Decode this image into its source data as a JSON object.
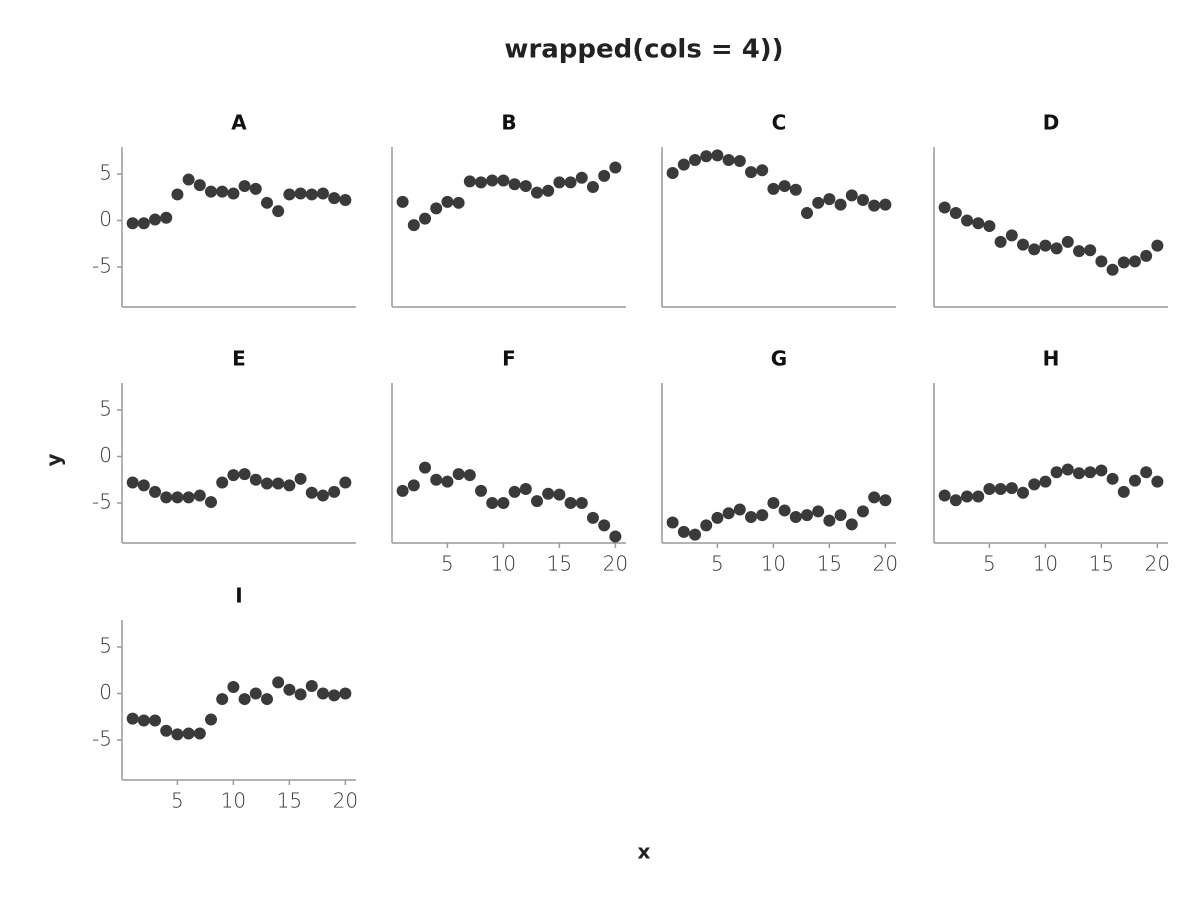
{
  "chart_data": {
    "type": "scatter",
    "title": "wrapped(cols = 4))",
    "x_label": "x",
    "y_label": "y",
    "color": "#3a3a3a",
    "columns": 4,
    "x": [
      1,
      2,
      3,
      4,
      5,
      6,
      7,
      8,
      9,
      10,
      11,
      12,
      13,
      14,
      15,
      16,
      17,
      18,
      19,
      20
    ],
    "xlim": [
      0.05,
      20.95
    ],
    "ylim": [
      -9.3,
      7.9
    ],
    "xticks": [
      5,
      10,
      15,
      20
    ],
    "yticks": [
      -5,
      0,
      5
    ],
    "panels": [
      {
        "title": "A",
        "values": [
          -0.3,
          -0.3,
          0.1,
          0.3,
          2.8,
          4.4,
          3.8,
          3.1,
          3.1,
          2.9,
          3.7,
          3.4,
          1.9,
          1.0,
          2.8,
          2.9,
          2.8,
          2.9,
          2.4,
          2.2
        ]
      },
      {
        "title": "B",
        "values": [
          2.0,
          -0.5,
          0.2,
          1.3,
          2.0,
          1.9,
          4.2,
          4.1,
          4.3,
          4.3,
          3.9,
          3.7,
          3.0,
          3.2,
          4.1,
          4.1,
          4.6,
          3.6,
          4.8,
          5.7
        ]
      },
      {
        "title": "C",
        "values": [
          5.1,
          6.0,
          6.5,
          6.9,
          7.0,
          6.5,
          6.4,
          5.2,
          5.4,
          3.4,
          3.7,
          3.3,
          0.8,
          1.9,
          2.3,
          1.7,
          2.7,
          2.2,
          1.6,
          1.7
        ]
      },
      {
        "title": "D",
        "values": [
          1.4,
          0.8,
          0.0,
          -0.3,
          -0.6,
          -2.3,
          -1.6,
          -2.6,
          -3.1,
          -2.7,
          -3.0,
          -2.3,
          -3.3,
          -3.2,
          -4.4,
          -5.3,
          -4.5,
          -4.4,
          -3.8,
          -2.7
        ]
      },
      {
        "title": "E",
        "values": [
          -2.8,
          -3.1,
          -3.8,
          -4.4,
          -4.4,
          -4.4,
          -4.2,
          -4.9,
          -2.8,
          -2.0,
          -1.9,
          -2.5,
          -2.9,
          -2.9,
          -3.1,
          -2.4,
          -3.9,
          -4.2,
          -3.8,
          -2.8
        ]
      },
      {
        "title": "F",
        "values": [
          -3.7,
          -3.1,
          -1.2,
          -2.5,
          -2.7,
          -1.9,
          -2.0,
          -3.7,
          -5.0,
          -5.0,
          -3.8,
          -3.5,
          -4.8,
          -4.0,
          -4.1,
          -5.0,
          -5.0,
          -6.6,
          -7.4,
          -8.6
        ]
      },
      {
        "title": "G",
        "values": [
          -7.1,
          -8.1,
          -8.4,
          -7.4,
          -6.6,
          -6.1,
          -5.7,
          -6.5,
          -6.3,
          -5.0,
          -5.8,
          -6.5,
          -6.3,
          -5.9,
          -6.9,
          -6.3,
          -7.3,
          -5.9,
          -4.4,
          -4.7
        ]
      },
      {
        "title": "H",
        "values": [
          -4.2,
          -4.7,
          -4.3,
          -4.3,
          -3.5,
          -3.5,
          -3.4,
          -3.9,
          -3.0,
          -2.7,
          -1.7,
          -1.4,
          -1.8,
          -1.7,
          -1.5,
          -2.4,
          -3.8,
          -2.6,
          -1.7,
          -2.7
        ]
      },
      {
        "title": "I",
        "values": [
          -2.7,
          -2.9,
          -2.9,
          -4.0,
          -4.4,
          -4.3,
          -4.3,
          -2.8,
          -0.6,
          0.7,
          -0.6,
          0.0,
          -0.6,
          1.2,
          0.4,
          -0.1,
          0.8,
          0.0,
          -0.2,
          0.0
        ]
      }
    ]
  }
}
